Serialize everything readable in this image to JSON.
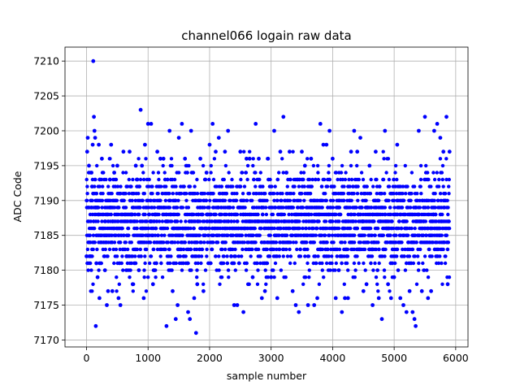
{
  "chart_data": {
    "type": "scatter",
    "title": "channel066 logain raw data",
    "xlabel": "sample number",
    "ylabel": "ADC Code",
    "xlim": [
      -350,
      6200
    ],
    "ylim": [
      7169,
      7212
    ],
    "xticks": [
      0,
      1000,
      2000,
      3000,
      4000,
      5000,
      6000
    ],
    "yticks": [
      7170,
      7175,
      7180,
      7185,
      7190,
      7195,
      7200,
      7205,
      7210
    ],
    "grid": true,
    "marker_color": "#0000ff",
    "n_samples": 5900,
    "typical_range": [
      7177,
      7197
    ],
    "series": [
      {
        "points": [
          [
            0,
            7182
          ],
          [
            10,
            7197
          ],
          [
            20,
            7199
          ],
          [
            40,
            7195
          ],
          [
            60,
            7182
          ],
          [
            80,
            7194
          ],
          [
            90,
            7192
          ],
          [
            100,
            7198
          ],
          [
            110,
            7210
          ],
          [
            120,
            7202
          ],
          [
            130,
            7200
          ],
          [
            140,
            7199
          ],
          [
            150,
            7172
          ],
          [
            160,
            7181
          ],
          [
            180,
            7179
          ],
          [
            200,
            7198
          ],
          [
            210,
            7176
          ],
          [
            250,
            7196
          ],
          [
            300,
            7180
          ],
          [
            330,
            7175
          ],
          [
            350,
            7177
          ],
          [
            380,
            7193
          ],
          [
            400,
            7198
          ],
          [
            420,
            7177
          ],
          [
            450,
            7194
          ],
          [
            500,
            7195
          ],
          [
            520,
            7176
          ],
          [
            550,
            7175
          ],
          [
            600,
            7197
          ],
          [
            650,
            7182
          ],
          [
            700,
            7197
          ],
          [
            750,
            7178
          ],
          [
            800,
            7195
          ],
          [
            850,
            7180
          ],
          [
            880,
            7203
          ],
          [
            900,
            7195
          ],
          [
            930,
            7176
          ],
          [
            950,
            7198
          ],
          [
            1000,
            7201
          ],
          [
            1050,
            7201
          ],
          [
            1080,
            7178
          ],
          [
            1100,
            7180
          ],
          [
            1150,
            7197
          ],
          [
            1200,
            7196
          ],
          [
            1250,
            7196
          ],
          [
            1300,
            7172
          ],
          [
            1350,
            7200
          ],
          [
            1400,
            7177
          ],
          [
            1450,
            7173
          ],
          [
            1480,
            7175
          ],
          [
            1500,
            7199
          ],
          [
            1550,
            7201
          ],
          [
            1600,
            7196
          ],
          [
            1650,
            7174
          ],
          [
            1680,
            7173
          ],
          [
            1700,
            7200
          ],
          [
            1750,
            7176
          ],
          [
            1780,
            7171
          ],
          [
            1800,
            7178
          ],
          [
            1850,
            7196
          ],
          [
            1900,
            7177
          ],
          [
            1950,
            7194
          ],
          [
            2000,
            7198
          ],
          [
            2050,
            7201
          ],
          [
            2100,
            7197
          ],
          [
            2150,
            7199
          ],
          [
            2200,
            7181
          ],
          [
            2250,
            7197
          ],
          [
            2300,
            7200
          ],
          [
            2350,
            7182
          ],
          [
            2400,
            7175
          ],
          [
            2450,
            7175
          ],
          [
            2500,
            7197
          ],
          [
            2550,
            7174
          ],
          [
            2600,
            7196
          ],
          [
            2650,
            7196
          ],
          [
            2700,
            7179
          ],
          [
            2750,
            7201
          ],
          [
            2800,
            7196
          ],
          [
            2850,
            7176
          ],
          [
            2900,
            7177
          ],
          [
            2950,
            7196
          ],
          [
            3000,
            7179
          ],
          [
            3050,
            7200
          ],
          [
            3100,
            7176
          ],
          [
            3150,
            7197
          ],
          [
            3200,
            7202
          ],
          [
            3250,
            7194
          ],
          [
            3300,
            7197
          ],
          [
            3350,
            7177
          ],
          [
            3400,
            7175
          ],
          [
            3450,
            7174
          ],
          [
            3500,
            7197
          ],
          [
            3550,
            7195
          ],
          [
            3600,
            7175
          ],
          [
            3650,
            7196
          ],
          [
            3700,
            7175
          ],
          [
            3750,
            7176
          ],
          [
            3800,
            7201
          ],
          [
            3850,
            7198
          ],
          [
            3900,
            7198
          ],
          [
            3950,
            7200
          ],
          [
            4000,
            7196
          ],
          [
            4050,
            7176
          ],
          [
            4100,
            7180
          ],
          [
            4150,
            7174
          ],
          [
            4200,
            7176
          ],
          [
            4250,
            7176
          ],
          [
            4300,
            7197
          ],
          [
            4350,
            7200
          ],
          [
            4400,
            7197
          ],
          [
            4450,
            7199
          ],
          [
            4500,
            7177
          ],
          [
            4550,
            7178
          ],
          [
            4600,
            7195
          ],
          [
            4650,
            7175
          ],
          [
            4700,
            7197
          ],
          [
            4750,
            7176
          ],
          [
            4800,
            7173
          ],
          [
            4850,
            7200
          ],
          [
            4900,
            7178
          ],
          [
            4950,
            7176
          ],
          [
            5000,
            7179
          ],
          [
            5050,
            7198
          ],
          [
            5100,
            7176
          ],
          [
            5150,
            7175
          ],
          [
            5200,
            7174
          ],
          [
            5250,
            7177
          ],
          [
            5300,
            7174
          ],
          [
            5330,
            7173
          ],
          [
            5350,
            7172
          ],
          [
            5400,
            7200
          ],
          [
            5450,
            7177
          ],
          [
            5500,
            7202
          ],
          [
            5550,
            7176
          ],
          [
            5600,
            7177
          ],
          [
            5650,
            7200
          ],
          [
            5700,
            7201
          ],
          [
            5750,
            7199
          ],
          [
            5800,
            7197
          ],
          [
            5850,
            7202
          ],
          [
            5870,
            7178
          ],
          [
            5900,
            7197
          ]
        ]
      }
    ]
  }
}
